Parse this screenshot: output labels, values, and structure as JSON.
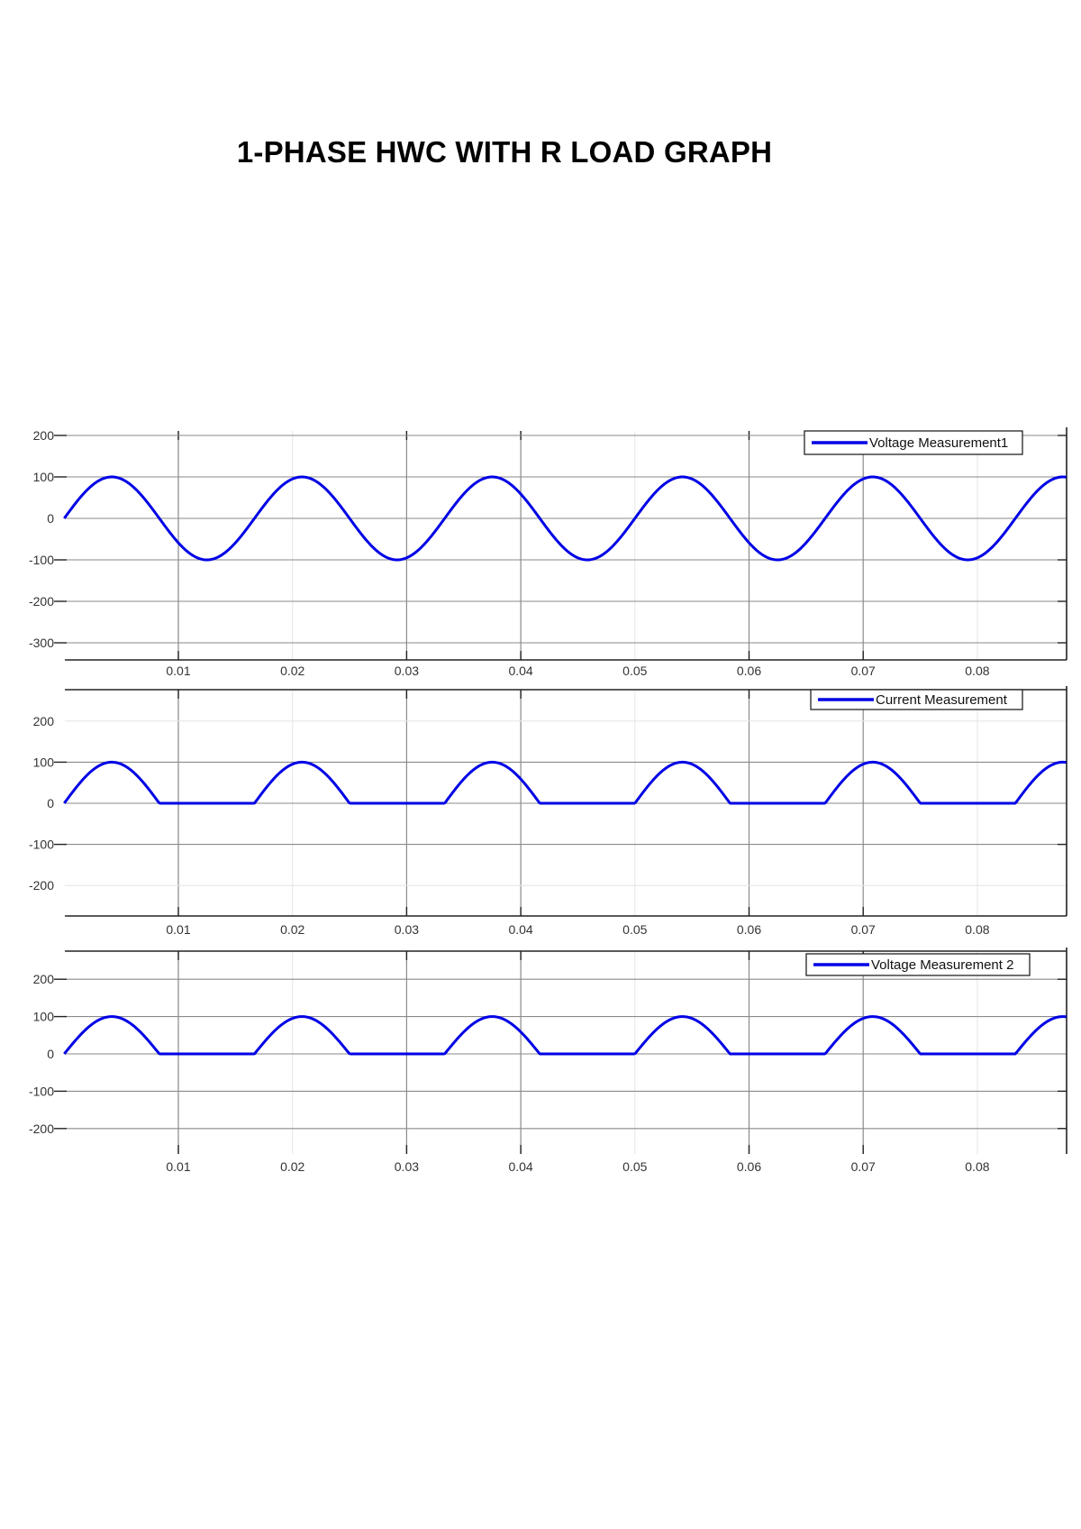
{
  "page": {
    "title": "1-PHASE HWC WITH R LOAD GRAPH"
  },
  "colors": {
    "trace": "#0000e6",
    "axis": "#222222",
    "grid_major": "#8a8a8a",
    "grid_minor": "#e6e6e6",
    "background": "#ffffff"
  },
  "chart_data": [
    {
      "type": "line",
      "title": "",
      "legend": [
        "Voltage Measurement1"
      ],
      "legend_position": "upper right",
      "xlabel": "",
      "ylabel": "",
      "xlim": [
        0,
        0.0878
      ],
      "ylim": [
        -310,
        210
      ],
      "x_ticks": [
        0.01,
        0.02,
        0.03,
        0.04,
        0.05,
        0.06,
        0.07,
        0.08
      ],
      "x_tick_labels": [
        "0.01",
        "0.02",
        "0.03",
        "0.04",
        "0.05",
        "0.06",
        "0.07",
        "0.08"
      ],
      "y_ticks": [
        200,
        100,
        0,
        -100,
        -200,
        -300
      ],
      "y_tick_labels": [
        "200",
        "100",
        "0",
        "-100",
        "-200",
        "-300"
      ],
      "grid": true,
      "waveform": "sine",
      "amplitude": 100,
      "frequency_hz": 60,
      "series": [
        {
          "name": "Voltage Measurement1",
          "x": [
            0,
            0.00417,
            0.00833,
            0.0125,
            0.01667,
            0.02083,
            0.025,
            0.02917,
            0.03333,
            0.0375,
            0.04167,
            0.04583,
            0.05,
            0.05417,
            0.05833,
            0.0625,
            0.06667,
            0.07083,
            0.075,
            0.07917,
            0.08333,
            0.0875
          ],
          "values": [
            0,
            100,
            0,
            -100,
            0,
            100,
            0,
            -100,
            0,
            100,
            0,
            -100,
            0,
            100,
            0,
            -100,
            0,
            100,
            0,
            -100,
            0,
            100
          ]
        }
      ]
    },
    {
      "type": "line",
      "title": "",
      "legend": [
        "Current Measurement"
      ],
      "legend_position": "upper right",
      "xlabel": "",
      "ylabel": "",
      "xlim": [
        0,
        0.0878
      ],
      "ylim": [
        -260,
        270
      ],
      "x_ticks": [
        0.01,
        0.02,
        0.03,
        0.04,
        0.05,
        0.06,
        0.07,
        0.08
      ],
      "x_tick_labels": [
        "0.01",
        "0.02",
        "0.03",
        "0.04",
        "0.05",
        "0.06",
        "0.07",
        "0.08"
      ],
      "y_ticks": [
        200,
        100,
        0,
        -100,
        -200
      ],
      "y_tick_labels": [
        "200",
        "100",
        "0",
        "-100",
        "-200"
      ],
      "grid": true,
      "waveform": "half-wave rectified sine",
      "amplitude": 100,
      "frequency_hz": 60,
      "series": [
        {
          "name": "Current Measurement",
          "x": [
            0,
            0.00417,
            0.00833,
            0.0125,
            0.01667,
            0.02083,
            0.025,
            0.02917,
            0.03333,
            0.0375,
            0.04167,
            0.04583,
            0.05,
            0.05417,
            0.05833,
            0.0625,
            0.06667,
            0.07083,
            0.075,
            0.07917,
            0.08333,
            0.0875
          ],
          "values": [
            0,
            100,
            0,
            0,
            0,
            100,
            0,
            0,
            0,
            100,
            0,
            0,
            0,
            100,
            0,
            0,
            0,
            100,
            0,
            0,
            0,
            100
          ]
        }
      ]
    },
    {
      "type": "line",
      "title": "",
      "legend": [
        "Voltage Measurement 2"
      ],
      "legend_position": "upper right",
      "xlabel": "",
      "ylabel": "",
      "xlim": [
        0,
        0.0878
      ],
      "ylim": [
        -275,
        270
      ],
      "x_ticks": [
        0.01,
        0.02,
        0.03,
        0.04,
        0.05,
        0.06,
        0.07,
        0.08
      ],
      "x_tick_labels": [
        "0.01",
        "0.02",
        "0.03",
        "0.04",
        "0.05",
        "0.06",
        "0.07",
        "0.08"
      ],
      "y_ticks": [
        200,
        100,
        0,
        -100,
        -200
      ],
      "y_tick_labels": [
        "200",
        "100",
        "0",
        "-100",
        "-200"
      ],
      "grid": true,
      "waveform": "half-wave rectified sine",
      "amplitude": 100,
      "frequency_hz": 60,
      "series": [
        {
          "name": "Voltage Measurement 2",
          "x": [
            0,
            0.00417,
            0.00833,
            0.0125,
            0.01667,
            0.02083,
            0.025,
            0.02917,
            0.03333,
            0.0375,
            0.04167,
            0.04583,
            0.05,
            0.05417,
            0.05833,
            0.0625,
            0.06667,
            0.07083,
            0.075,
            0.07917,
            0.08333,
            0.0875
          ],
          "values": [
            0,
            100,
            0,
            0,
            0,
            100,
            0,
            0,
            0,
            100,
            0,
            0,
            0,
            100,
            0,
            0,
            0,
            100,
            0,
            0,
            0,
            100
          ]
        }
      ]
    }
  ]
}
